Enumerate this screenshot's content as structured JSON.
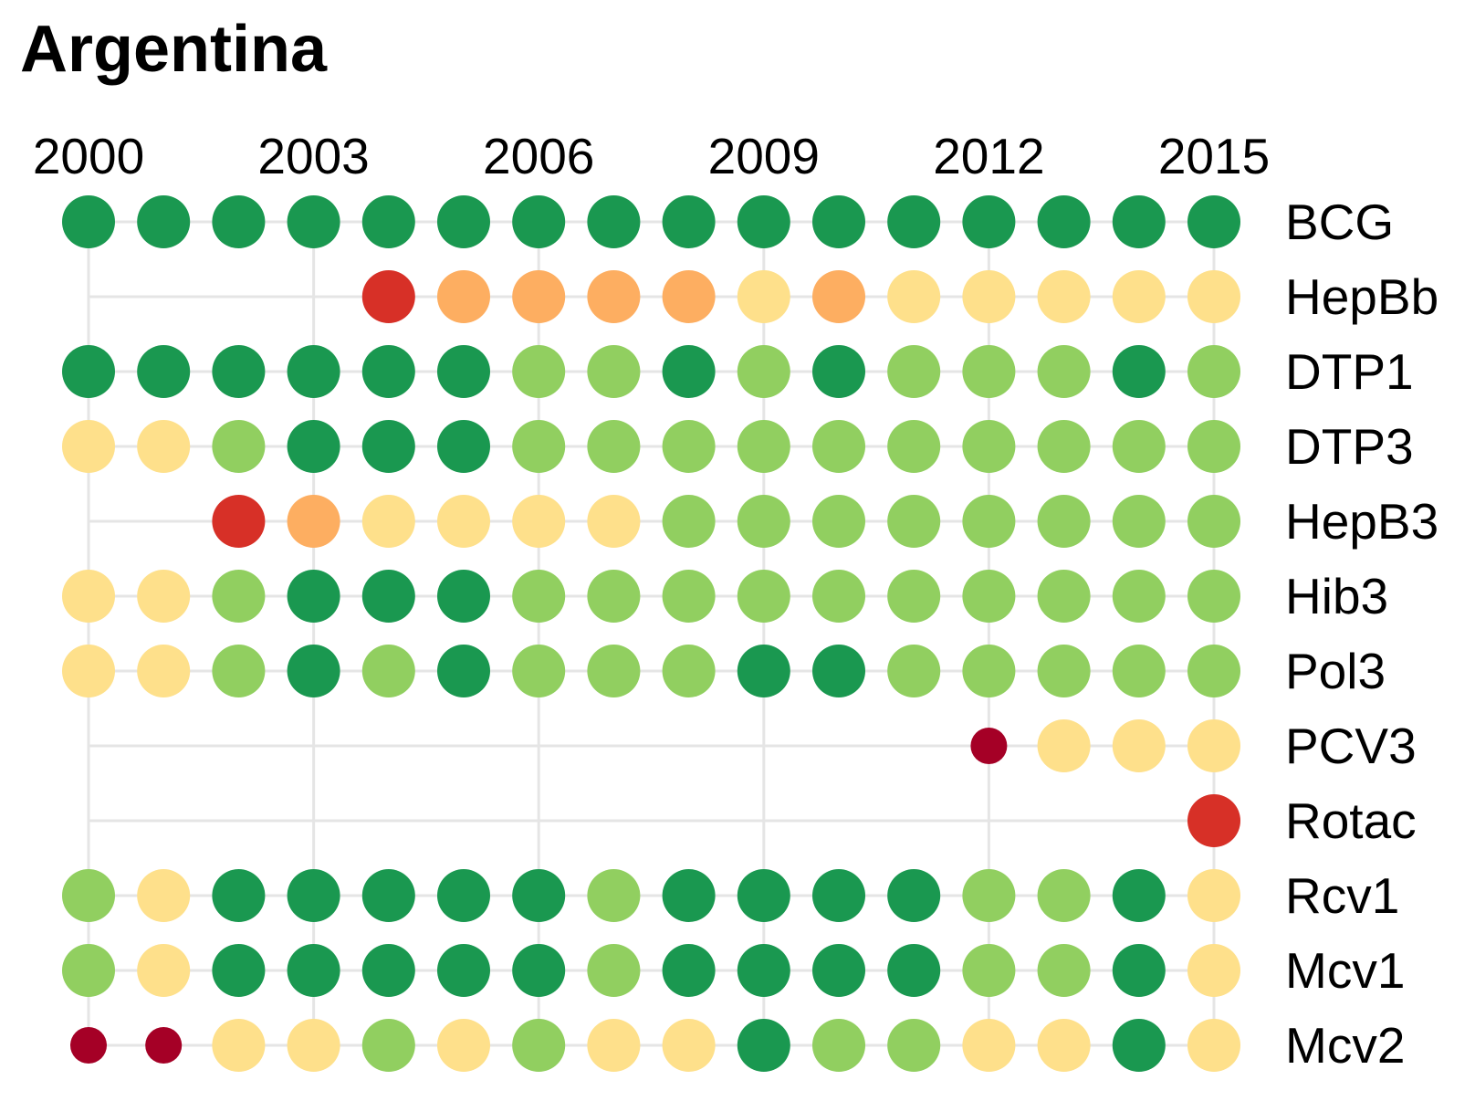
{
  "chart_data": {
    "type": "scatter",
    "title": "Argentina",
    "x_years": [
      2000,
      2001,
      2002,
      2003,
      2004,
      2005,
      2006,
      2007,
      2008,
      2009,
      2010,
      2011,
      2012,
      2013,
      2014,
      2015
    ],
    "x_tick_labels": [
      "2000",
      "2003",
      "2006",
      "2009",
      "2012",
      "2015"
    ],
    "grid": true,
    "legend": "none",
    "colors": {
      "darkgreen": "#1a9850",
      "lightgreen": "#91cf60",
      "yellow": "#fee08b",
      "orange": "#fdae61",
      "red": "#d73027",
      "darkred": "#a50026",
      "grid": "#e5e5e5"
    },
    "series": [
      {
        "name": "BCG",
        "values": [
          "darkgreen",
          "darkgreen",
          "darkgreen",
          "darkgreen",
          "darkgreen",
          "darkgreen",
          "darkgreen",
          "darkgreen",
          "darkgreen",
          "darkgreen",
          "darkgreen",
          "darkgreen",
          "darkgreen",
          "darkgreen",
          "darkgreen",
          "darkgreen"
        ]
      },
      {
        "name": "HepBb",
        "values": [
          null,
          null,
          null,
          null,
          "red",
          "orange",
          "orange",
          "orange",
          "orange",
          "yellow",
          "orange",
          "yellow",
          "yellow",
          "yellow",
          "yellow",
          "yellow"
        ]
      },
      {
        "name": "DTP1",
        "values": [
          "darkgreen",
          "darkgreen",
          "darkgreen",
          "darkgreen",
          "darkgreen",
          "darkgreen",
          "lightgreen",
          "lightgreen",
          "darkgreen",
          "lightgreen",
          "darkgreen",
          "lightgreen",
          "lightgreen",
          "lightgreen",
          "darkgreen",
          "lightgreen"
        ]
      },
      {
        "name": "DTP3",
        "values": [
          "yellow",
          "yellow",
          "lightgreen",
          "darkgreen",
          "darkgreen",
          "darkgreen",
          "lightgreen",
          "lightgreen",
          "lightgreen",
          "lightgreen",
          "lightgreen",
          "lightgreen",
          "lightgreen",
          "lightgreen",
          "lightgreen",
          "lightgreen"
        ]
      },
      {
        "name": "HepB3",
        "values": [
          null,
          null,
          "red",
          "orange",
          "yellow",
          "yellow",
          "yellow",
          "yellow",
          "lightgreen",
          "lightgreen",
          "lightgreen",
          "lightgreen",
          "lightgreen",
          "lightgreen",
          "lightgreen",
          "lightgreen"
        ]
      },
      {
        "name": "Hib3",
        "values": [
          "yellow",
          "yellow",
          "lightgreen",
          "darkgreen",
          "darkgreen",
          "darkgreen",
          "lightgreen",
          "lightgreen",
          "lightgreen",
          "lightgreen",
          "lightgreen",
          "lightgreen",
          "lightgreen",
          "lightgreen",
          "lightgreen",
          "lightgreen"
        ]
      },
      {
        "name": "Pol3",
        "values": [
          "yellow",
          "yellow",
          "lightgreen",
          "darkgreen",
          "lightgreen",
          "darkgreen",
          "lightgreen",
          "lightgreen",
          "lightgreen",
          "darkgreen",
          "darkgreen",
          "lightgreen",
          "lightgreen",
          "lightgreen",
          "lightgreen",
          "lightgreen"
        ]
      },
      {
        "name": "PCV3",
        "values": [
          null,
          null,
          null,
          null,
          null,
          null,
          null,
          null,
          null,
          null,
          null,
          null,
          "darkred",
          "yellow",
          "yellow",
          "yellow"
        ]
      },
      {
        "name": "Rotac",
        "values": [
          null,
          null,
          null,
          null,
          null,
          null,
          null,
          null,
          null,
          null,
          null,
          null,
          null,
          null,
          null,
          "red"
        ]
      },
      {
        "name": "Rcv1",
        "values": [
          "lightgreen",
          "yellow",
          "darkgreen",
          "darkgreen",
          "darkgreen",
          "darkgreen",
          "darkgreen",
          "lightgreen",
          "darkgreen",
          "darkgreen",
          "darkgreen",
          "darkgreen",
          "lightgreen",
          "lightgreen",
          "darkgreen",
          "yellow"
        ]
      },
      {
        "name": "Mcv1",
        "values": [
          "lightgreen",
          "yellow",
          "darkgreen",
          "darkgreen",
          "darkgreen",
          "darkgreen",
          "darkgreen",
          "lightgreen",
          "darkgreen",
          "darkgreen",
          "darkgreen",
          "darkgreen",
          "lightgreen",
          "lightgreen",
          "darkgreen",
          "yellow"
        ]
      },
      {
        "name": "Mcv2",
        "values": [
          "darkred",
          "darkred",
          "yellow",
          "yellow",
          "lightgreen",
          "yellow",
          "lightgreen",
          "yellow",
          "yellow",
          "darkgreen",
          "lightgreen",
          "lightgreen",
          "yellow",
          "yellow",
          "darkgreen",
          "yellow"
        ]
      }
    ]
  }
}
